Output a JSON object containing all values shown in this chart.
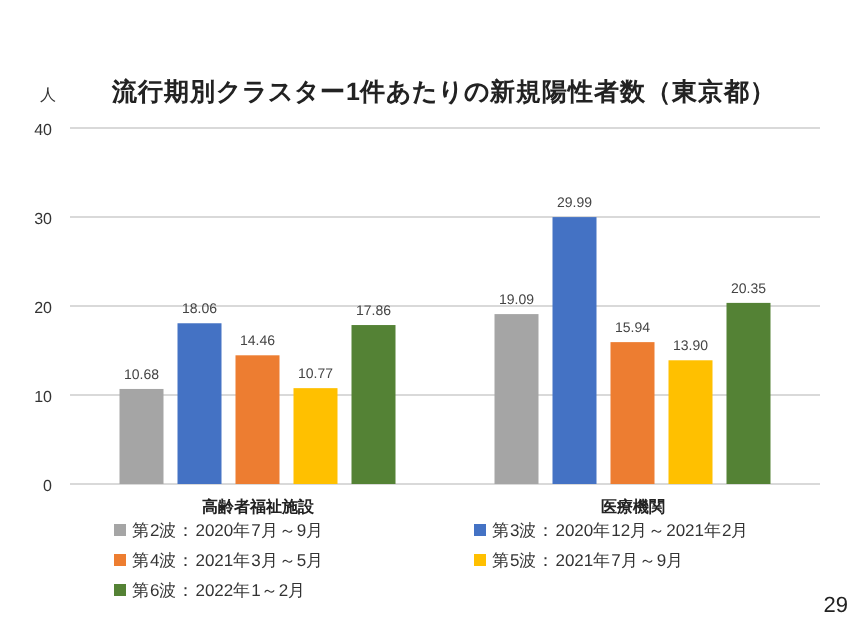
{
  "chart_data": {
    "type": "bar",
    "title": "流行期別クラスター1件あたりの新規陽性者数（東京都）",
    "ylabel": "人",
    "categories": [
      "高齢者福祉施設",
      "医療機関"
    ],
    "series": [
      {
        "name": "第2波：2020年7月～9月",
        "color": "#a5a5a5",
        "values": [
          10.68,
          19.09
        ]
      },
      {
        "name": "第3波：2020年12月～2021年2月",
        "color": "#4472c4",
        "values": [
          18.06,
          29.99
        ]
      },
      {
        "name": "第4波：2021年3月～5月",
        "color": "#ed7d31",
        "values": [
          14.46,
          15.94
        ]
      },
      {
        "name": "第5波：2021年7月～9月",
        "color": "#ffc000",
        "values": [
          10.77,
          13.9
        ]
      },
      {
        "name": "第6波：2022年1～2月",
        "color": "#548235",
        "values": [
          17.86,
          20.35
        ]
      }
    ],
    "value_labels": [
      [
        "10.68",
        "19.09"
      ],
      [
        "18.06",
        "29.99"
      ],
      [
        "14.46",
        "15.94"
      ],
      [
        "10.77",
        "13.90"
      ],
      [
        "17.86",
        "20.35"
      ]
    ],
    "ylim": [
      0,
      40
    ],
    "yticks": [
      0,
      10,
      20,
      30,
      40
    ],
    "grid": "y",
    "legend": "bottom",
    "annotations": [
      "29"
    ]
  }
}
